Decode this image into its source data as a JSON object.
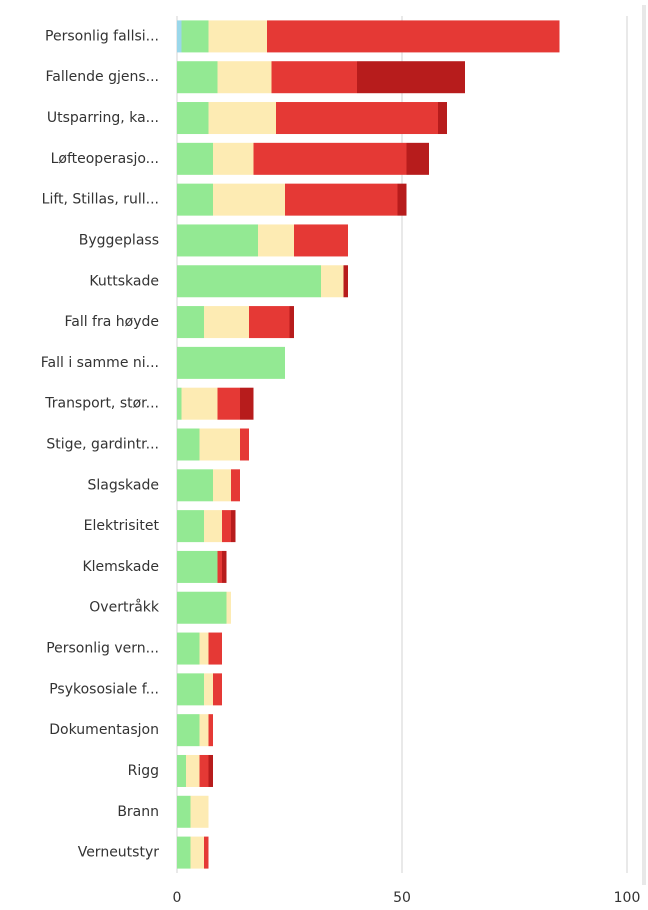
{
  "chart_data": {
    "type": "stacked-barh",
    "categories": [
      "Personlig fallsi...",
      "Fallende gjens...",
      "Utsparring, ka...",
      "Løfteoperasjo...",
      "Lift, Stillas, rull...",
      "Byggeplass",
      "Kuttskade",
      "Fall fra høyde",
      "Fall i samme ni...",
      "Transport, stør...",
      "Stige, gardintr...",
      "Slagskade",
      "Elektrisitet",
      "Klemskade",
      "Overtråkk",
      "Personlig vern...",
      "Psykososiale f...",
      "Dokumentasjon",
      "Rigg",
      "Brann",
      "Verneutstyr"
    ],
    "series": [
      {
        "color": "#9ad7ea",
        "values": [
          1,
          0,
          0,
          0,
          0,
          0,
          0,
          0,
          0,
          0,
          0,
          0,
          0,
          0,
          0,
          0,
          0,
          0,
          0,
          0,
          0
        ]
      },
      {
        "color": "#93e993",
        "values": [
          6,
          9,
          7,
          8,
          8,
          18,
          32,
          6,
          24,
          1,
          5,
          8,
          6,
          9,
          11,
          5,
          6,
          5,
          2,
          3,
          3
        ]
      },
      {
        "color": "#fdebb3",
        "values": [
          13,
          12,
          15,
          9,
          16,
          8,
          5,
          10,
          0,
          8,
          9,
          4,
          4,
          0,
          1,
          2,
          2,
          2,
          3,
          4,
          3
        ]
      },
      {
        "color": "#e53935",
        "values": [
          65,
          19,
          36,
          34,
          25,
          12,
          0,
          9,
          0,
          5,
          2,
          2,
          2,
          1,
          0,
          3,
          2,
          1,
          2,
          0,
          1
        ]
      },
      {
        "color": "#b71c1c",
        "values": [
          0,
          24,
          2,
          5,
          2,
          0,
          1,
          1,
          0,
          3,
          0,
          0,
          1,
          1,
          0,
          0,
          0,
          0,
          1,
          0,
          0
        ]
      }
    ],
    "xlim": [
      0,
      100
    ],
    "xticks": [
      0,
      50,
      100
    ],
    "grid": true
  }
}
